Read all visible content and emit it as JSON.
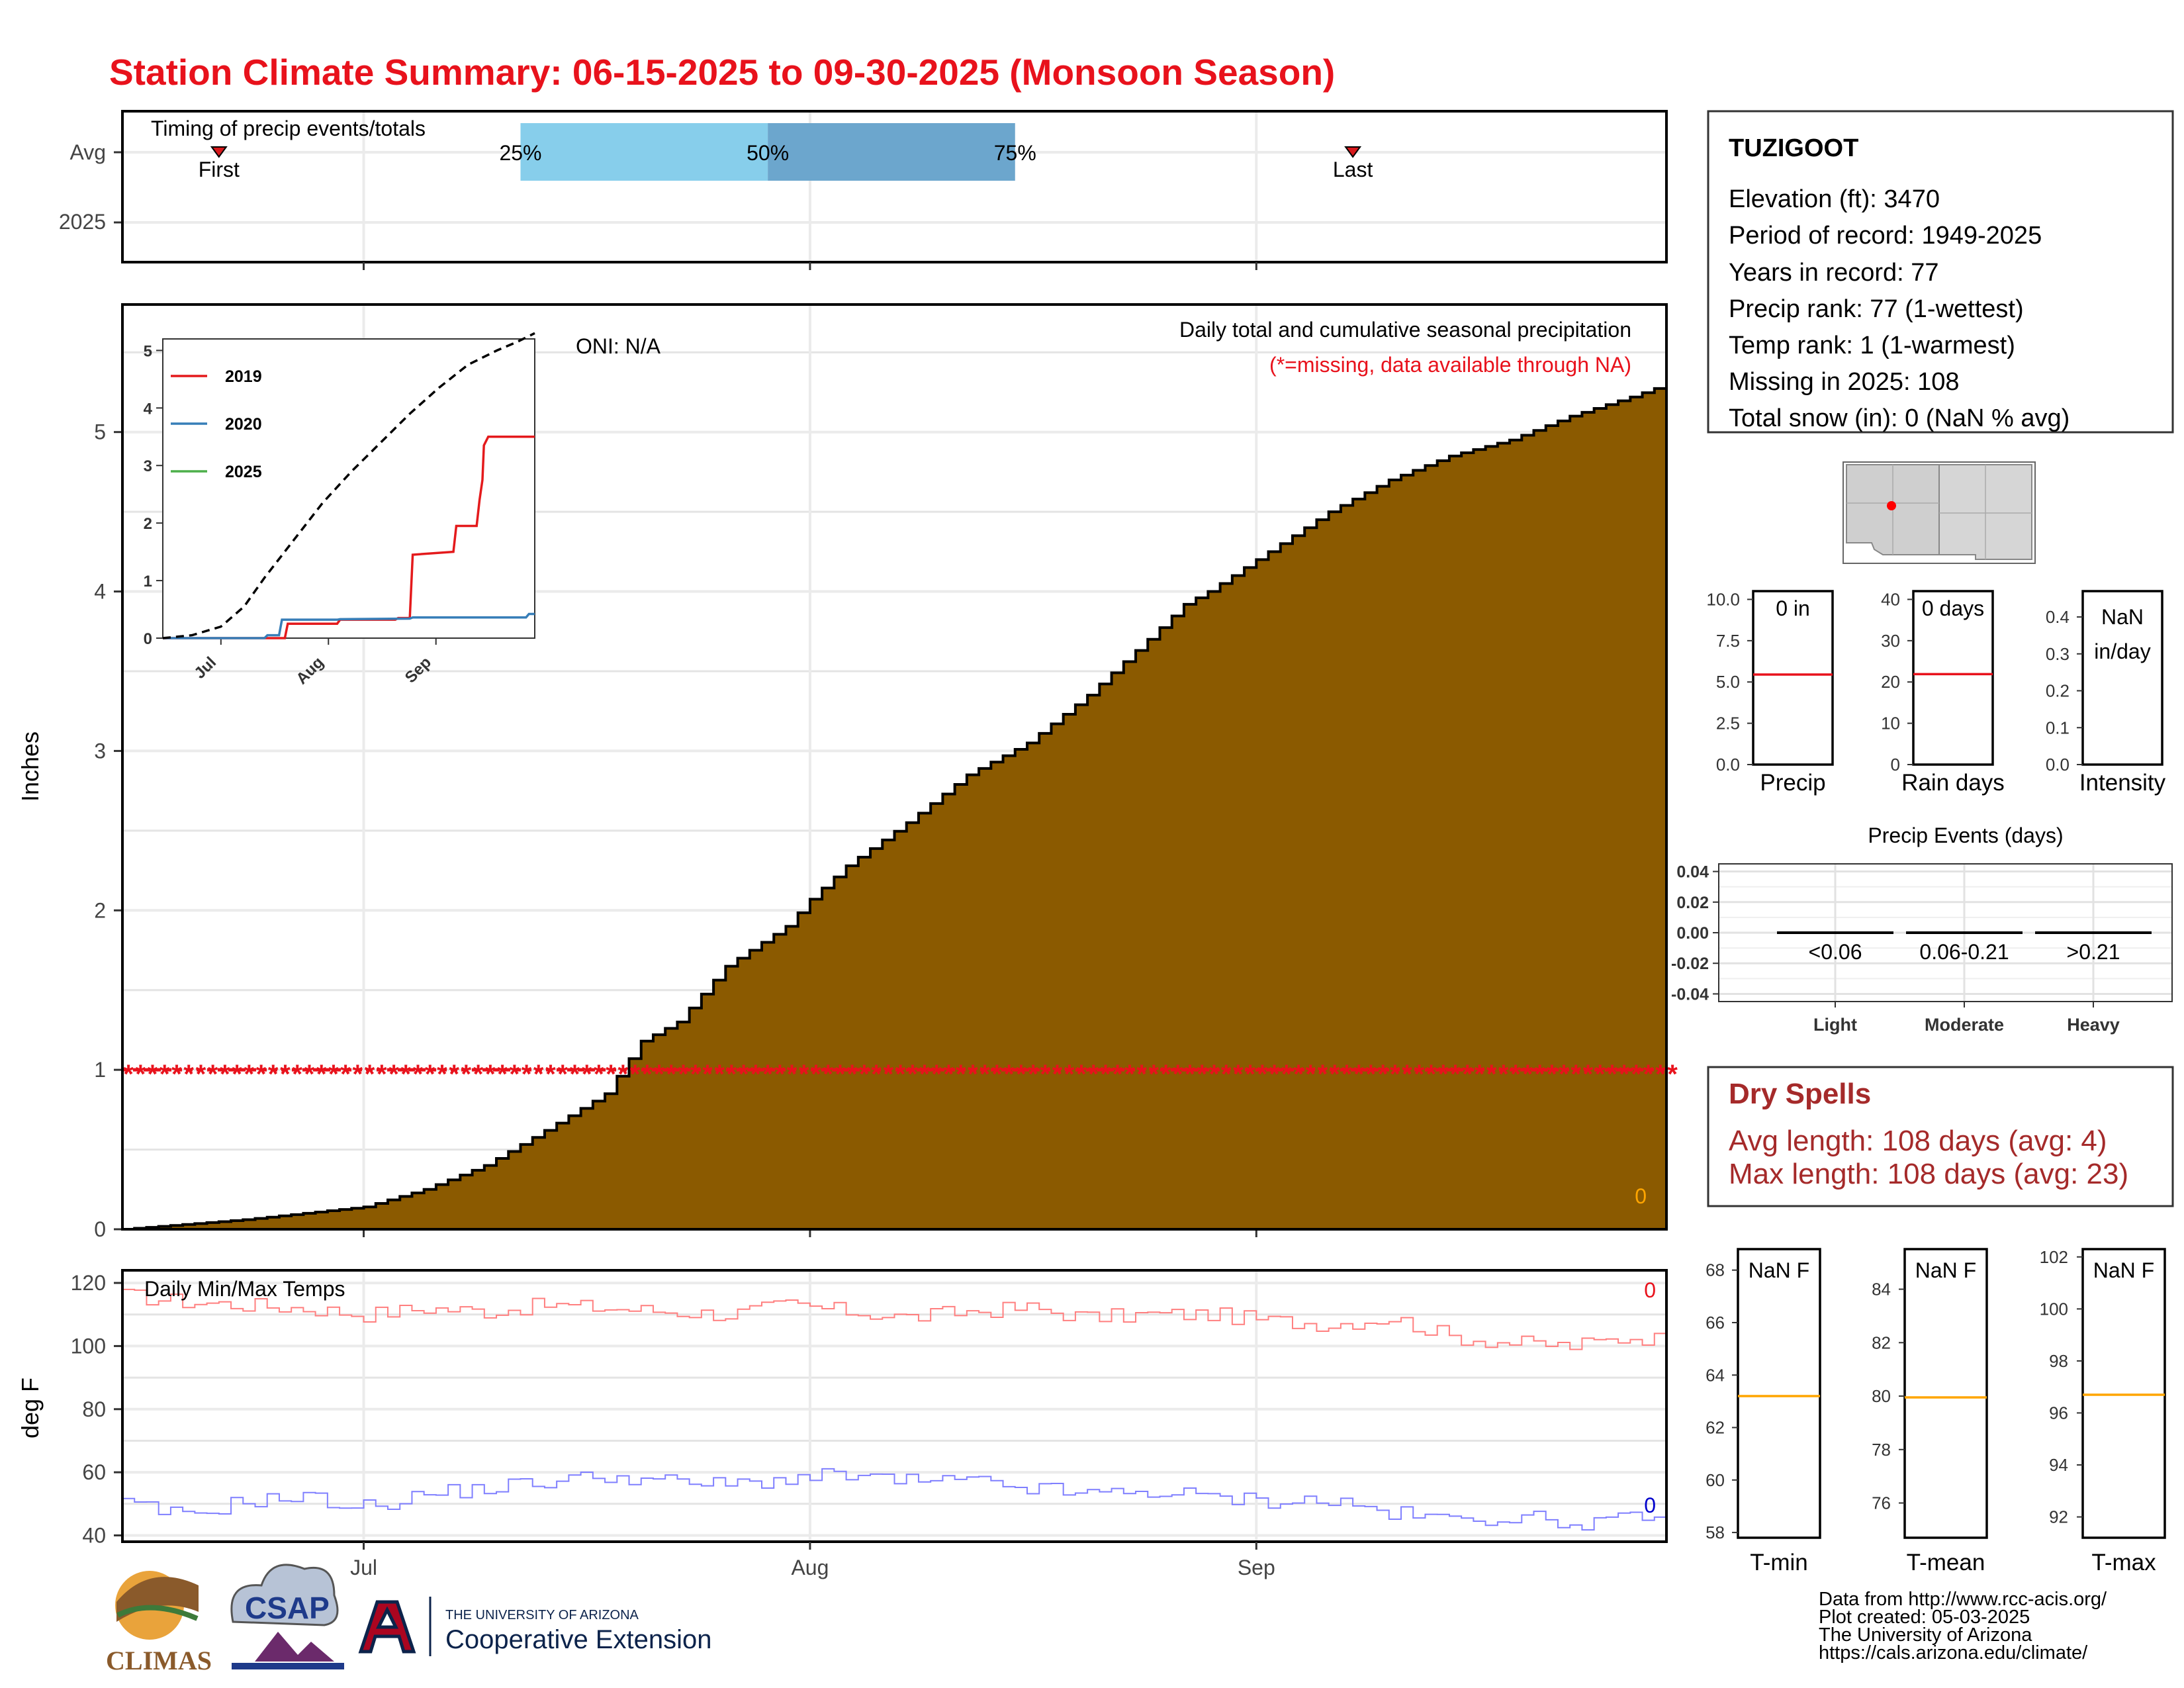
{
  "title": "Station Climate Summary: 06-15-2025 to 09-30-2025 (Monsoon Season)",
  "colors": {
    "title": "#e8121c",
    "precip_fill": "#8b5a00",
    "missing": "#e8121c",
    "tmax": "#ff7f7f",
    "tmin": "#7f7fff",
    "iqr_low": "#87ceeb",
    "iqr_high": "#6ca6cd",
    "avg_line": "#ffa500",
    "dry_spells": "#a52a2a"
  },
  "timing_panel": {
    "title": "Timing of precip events/totals",
    "y_labels": [
      "Avg",
      "2025"
    ],
    "first_label": "First",
    "last_label": "Last",
    "pct_labels": [
      "25%",
      "50%",
      "75%"
    ],
    "first_doy": 8,
    "last_doy": 102,
    "p25": 33,
    "p50": 53.5,
    "p75": 74
  },
  "x_axis": {
    "ticks": [
      {
        "label": "Jul",
        "doy": 20
      },
      {
        "label": "Aug",
        "doy": 57
      },
      {
        "label": "Sep",
        "doy": 94
      }
    ],
    "start": 0,
    "end": 128
  },
  "main_chart": {
    "ylabel": "Inches",
    "annotation": "Daily total and cumulative seasonal precipitation",
    "missing_note": "(*=missing, data available through NA)",
    "oni": "ONI: N/A",
    "corner_value": "0",
    "missing_marker": "*",
    "yticks": [
      "0",
      "1",
      "2",
      "3",
      "4",
      "5"
    ]
  },
  "inset_chart": {
    "yticks": [
      "0",
      "1",
      "2",
      "3",
      "4",
      "5"
    ],
    "xticks": [
      "Jul",
      "Aug",
      "Sep"
    ]
  },
  "temp_chart": {
    "ylabel": "deg F",
    "title": "Daily Min/Max Temps",
    "max_marker": "0",
    "min_marker": "0",
    "yticks": [
      "40",
      "60",
      "80",
      "100",
      "120"
    ]
  },
  "station_box": {
    "name": "TUZIGOOT",
    "lines": [
      "Elevation (ft): 3470",
      "Period of record: 1949-2025",
      "Years in record: 77",
      "Precip rank: 77 (1-wettest)",
      "Temp rank: 1 (1-warmest)",
      "Missing in 2025: 108",
      "Total snow (in): 0 (NaN % avg)"
    ]
  },
  "mini_precip": {
    "precip": {
      "top": "0 in",
      "label": "Precip",
      "yticks": [
        "0.0",
        "2.5",
        "5.0",
        "7.5",
        "10.0"
      ],
      "ymax": 10.5,
      "avg": 5.45
    },
    "raindays": {
      "top": "0 days",
      "label": "Rain days",
      "yticks": [
        "0",
        "10",
        "20",
        "30",
        "40"
      ],
      "ymax": 42,
      "avg": 21.9
    },
    "intensity": {
      "top1": "NaN",
      "top2": "in/day",
      "label": "Intensity",
      "yticks": [
        "0.0",
        "0.1",
        "0.2",
        "0.3",
        "0.4"
      ],
      "ymax": 0.47
    }
  },
  "precip_events": {
    "title": "Precip Events (days)",
    "yticks": [
      "0.04",
      "0.02",
      "0.00",
      "-0.02",
      "-0.04"
    ],
    "categories": [
      "Light",
      "Moderate",
      "Heavy"
    ],
    "ranges": [
      "<0.06",
      "0.06-0.21",
      ">0.21"
    ],
    "values": [
      0,
      0,
      0
    ]
  },
  "dry_spells": {
    "title": "Dry Spells",
    "avg": "Avg length: 108 days (avg: 4)",
    "max": "Max length: 108 days (avg: 23)"
  },
  "mini_temp": {
    "tmin": {
      "top": "NaN F",
      "label": "T-min",
      "yticks": [
        "58",
        "60",
        "62",
        "64",
        "66",
        "68"
      ],
      "ymin": 57.8,
      "ymax": 68.8,
      "avg": 63.2
    },
    "tmean": {
      "top": "NaN F",
      "label": "T-mean",
      "yticks": [
        "76",
        "78",
        "80",
        "82",
        "84"
      ],
      "ymin": 74.7,
      "ymax": 85.5,
      "avg": 79.95
    },
    "tmax": {
      "top": "NaN F",
      "label": "T-max",
      "yticks": [
        "92",
        "94",
        "96",
        "98",
        "100",
        "102"
      ],
      "ymin": 91.2,
      "ymax": 102.3,
      "avg": 96.7
    }
  },
  "credits": [
    "Data from http://www.rcc-acis.org/",
    "Plot created: 05-03-2025",
    "The University of Arizona",
    "https://cals.arizona.edu/climate/"
  ],
  "logos": {
    "climas": "CLIMAS",
    "csap": "CSAP",
    "ua_header": "THE UNIVERSITY OF ARIZONA",
    "ua_ext": "Cooperative Extension"
  },
  "chart_data": [
    {
      "type": "area",
      "title": "Daily total and cumulative seasonal precipitation",
      "ylabel": "Inches",
      "x_start": "06-15",
      "x_end": "09-30",
      "ylim": [
        0,
        5.8
      ],
      "series": [
        {
          "name": "",
          "x_day": [
            0,
            10,
            20,
            25,
            30,
            35,
            40,
            43,
            46,
            50,
            55,
            57,
            60,
            65,
            70,
            75,
            80,
            85,
            88,
            90,
            95,
            100,
            105,
            110,
            115,
            120,
            125,
            128
          ],
          "y": [
            0,
            0.06,
            0.14,
            0.25,
            0.4,
            0.62,
            0.85,
            1.18,
            1.3,
            1.65,
            1.9,
            2.07,
            2.28,
            2.55,
            2.85,
            3.05,
            3.35,
            3.7,
            3.92,
            4.0,
            4.25,
            4.5,
            4.7,
            4.85,
            4.95,
            5.1,
            5.22,
            5.3
          ]
        }
      ]
    },
    {
      "type": "line",
      "title": "",
      "x_start": "06-15",
      "x_end": "09-30",
      "ylim": [
        0,
        5.2
      ],
      "series": [
        {
          "name": "2019",
          "color": "#e41a1c",
          "x_day": [
            0,
            42,
            43,
            60,
            61,
            80,
            81,
            85,
            86,
            100,
            101,
            108,
            109,
            110,
            110.5,
            112,
            113,
            128
          ],
          "y": [
            0,
            0,
            0.25,
            0.25,
            0.32,
            0.32,
            0.35,
            0.35,
            1.45,
            1.5,
            1.95,
            1.95,
            2.4,
            2.75,
            3.35,
            3.5,
            3.5,
            3.5
          ]
        },
        {
          "name": "2020",
          "color": "#377eb8",
          "x_day": [
            0,
            35,
            36,
            40,
            41,
            60,
            61,
            85,
            86,
            125,
            126,
            128
          ],
          "y": [
            0,
            0,
            0.05,
            0.05,
            0.32,
            0.32,
            0.33,
            0.34,
            0.36,
            0.36,
            0.42,
            0.42
          ]
        },
        {
          "name": "2025",
          "color": "#4daf4a",
          "x_day": [],
          "y": []
        },
        {
          "name": "",
          "color": "#000000",
          "x_day": [
            0,
            10,
            20,
            28,
            35,
            45,
            55,
            65,
            75,
            85,
            95,
            105,
            115,
            122,
            128
          ],
          "y": [
            0,
            0.05,
            0.2,
            0.55,
            1.05,
            1.7,
            2.35,
            2.9,
            3.4,
            3.9,
            4.35,
            4.75,
            5.0,
            5.15,
            5.3
          ]
        }
      ]
    },
    {
      "type": "line",
      "title": "Daily Min/Max Temps",
      "ylabel": "deg F",
      "ylim": [
        38,
        124
      ],
      "series": [
        {
          "name": "",
          "x_day": [
            0,
            5,
            10,
            15,
            20,
            25,
            30,
            35,
            40,
            45,
            50,
            55,
            60,
            65,
            70,
            75,
            80,
            85,
            90,
            95,
            100,
            105,
            110,
            115,
            120,
            125,
            128
          ],
          "y": [
            116,
            114,
            113,
            112,
            110,
            112,
            111,
            113,
            112,
            111,
            110,
            113,
            111,
            109,
            111,
            112,
            109,
            110,
            110,
            108,
            107,
            109,
            103,
            101,
            100,
            103,
            102
          ]
        },
        {
          "name": "",
          "x_day": [
            0,
            5,
            10,
            15,
            20,
            25,
            30,
            35,
            40,
            45,
            50,
            55,
            60,
            65,
            70,
            75,
            80,
            85,
            90,
            95,
            100,
            105,
            110,
            115,
            120,
            125,
            128
          ],
          "y": [
            50,
            46,
            51,
            52,
            49,
            53,
            55,
            57,
            59,
            57,
            56,
            58,
            59,
            57,
            57,
            55,
            53,
            54,
            52,
            51,
            51,
            47,
            45,
            46,
            44,
            45,
            44
          ]
        }
      ]
    },
    {
      "type": "bar",
      "title": "Precip Events (days)",
      "categories": [
        "Light",
        "Moderate",
        "Heavy"
      ],
      "values": [
        0,
        0,
        0
      ],
      "ylim": [
        -0.045,
        0.045
      ]
    }
  ]
}
